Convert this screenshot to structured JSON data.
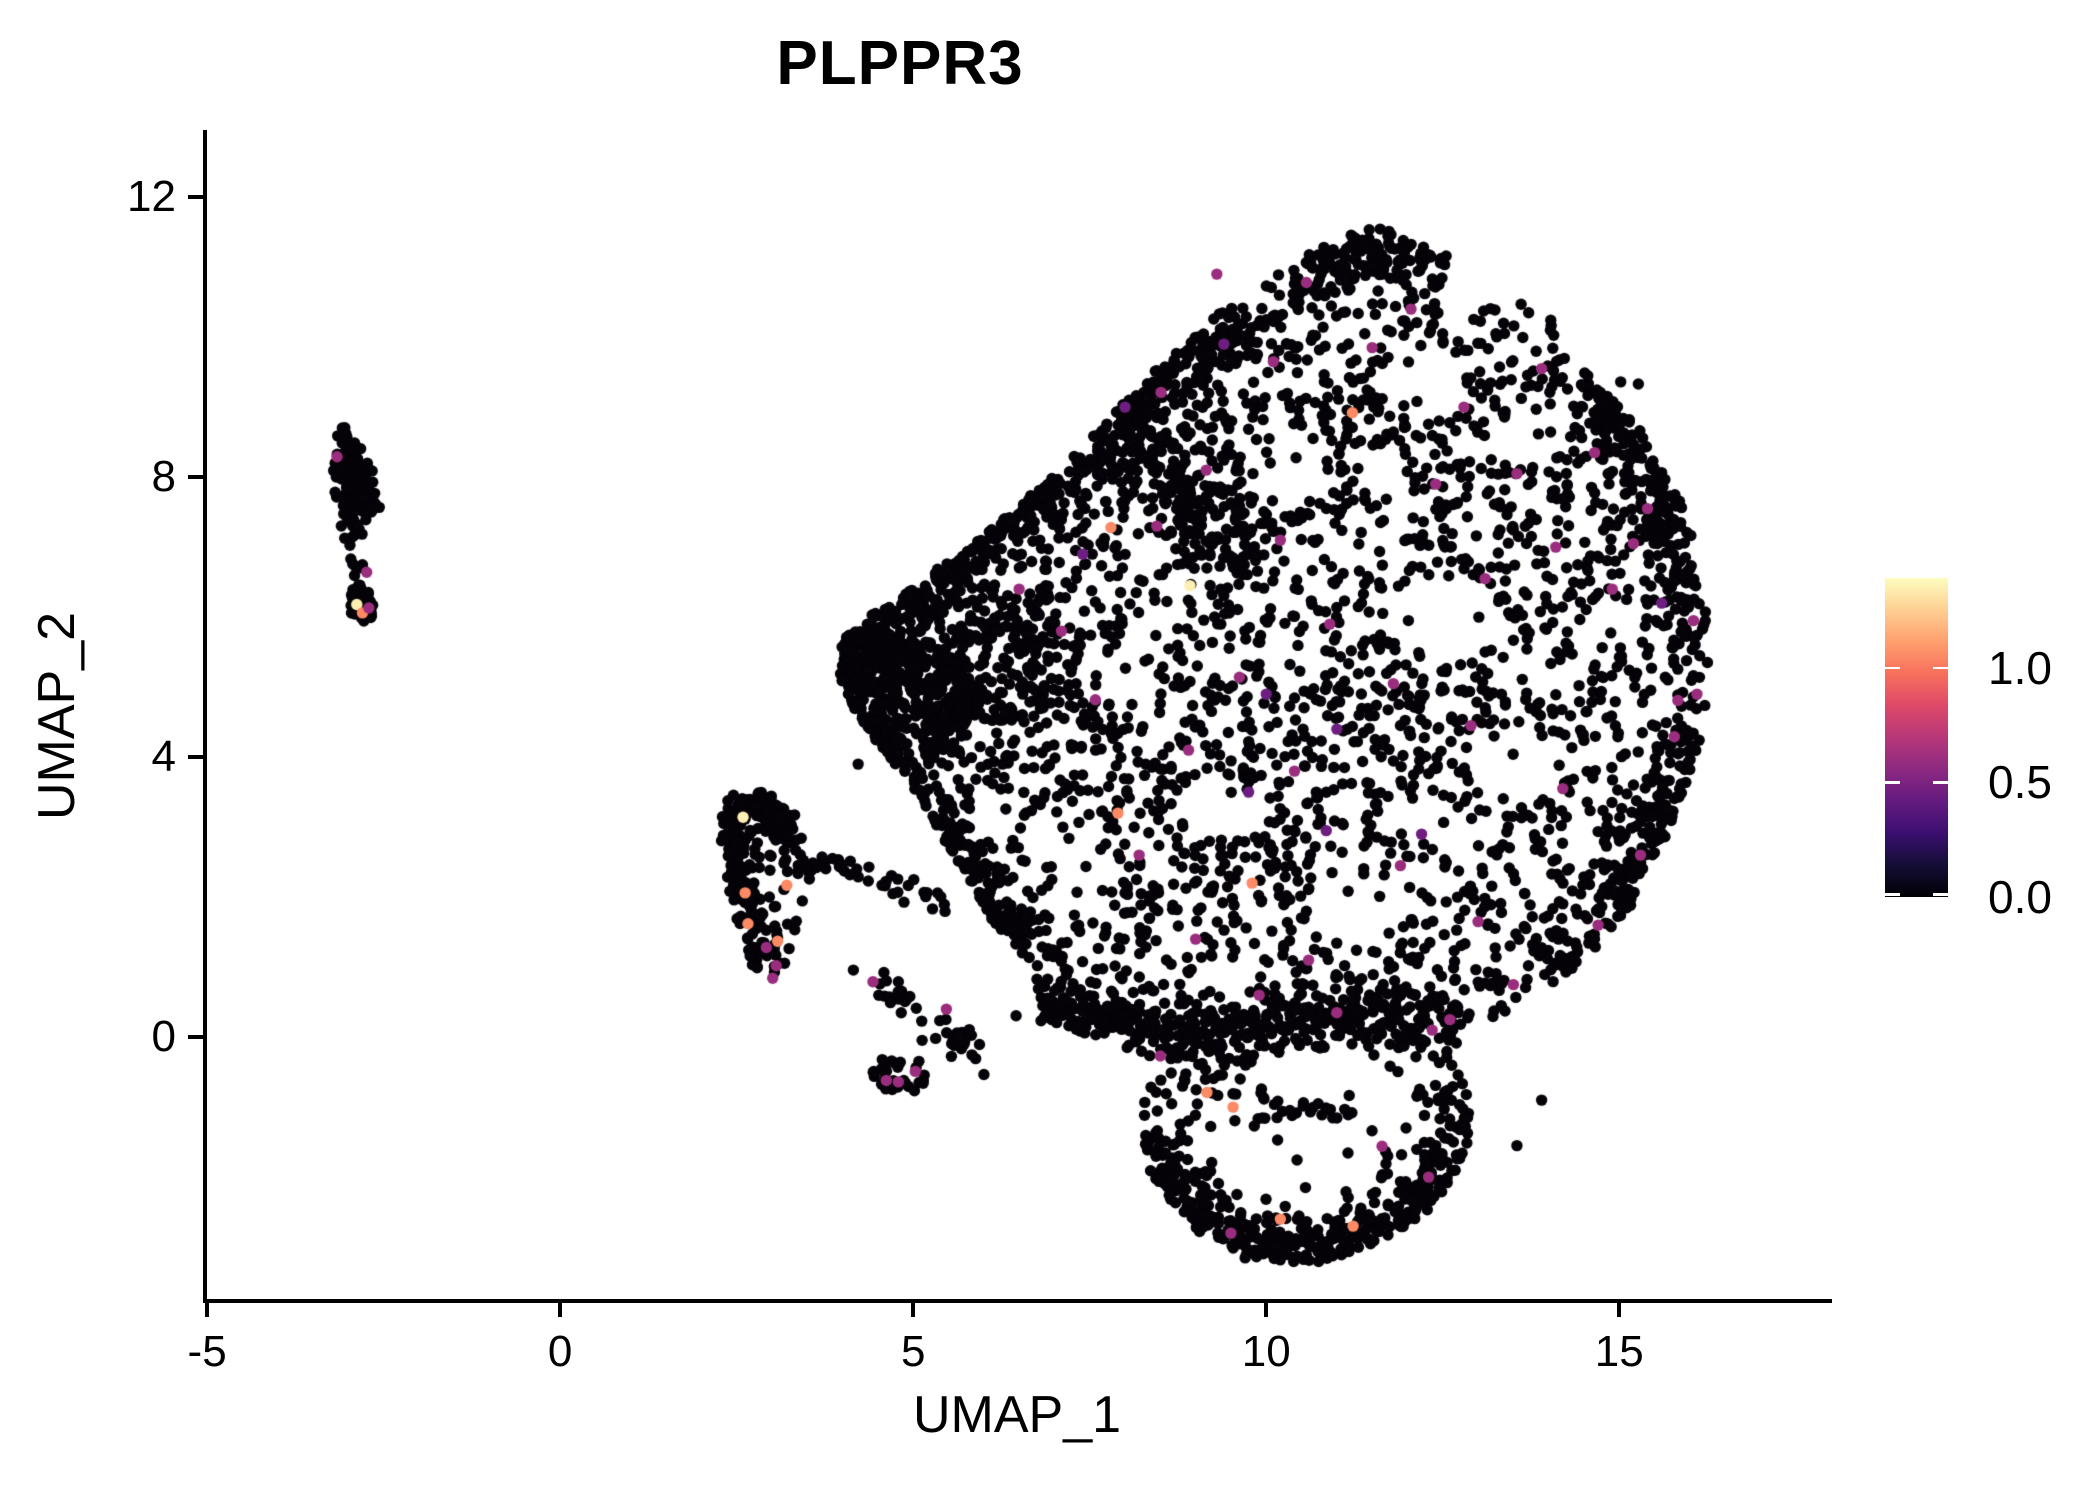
{
  "title": "PLPPR3",
  "axes": {
    "x": {
      "label": "UMAP_1",
      "ticks": [
        -5,
        0,
        5,
        10,
        15
      ],
      "domain": [
        -5.03,
        17.97
      ]
    },
    "y": {
      "label": "UMAP_2",
      "ticks": [
        0,
        4,
        8,
        12
      ],
      "domain": [
        -3.77,
        12.93
      ]
    }
  },
  "legend": {
    "labels": [
      "1.0",
      "0.5",
      "0.0"
    ],
    "values": [
      1.0,
      0.5,
      0.0
    ],
    "vmin": 0,
    "vmax": 1.39,
    "colormap": "magma",
    "stops": [
      [
        0.0,
        "#000004"
      ],
      [
        0.1,
        "#140e36"
      ],
      [
        0.2,
        "#3b0f70"
      ],
      [
        0.3,
        "#641a80"
      ],
      [
        0.4,
        "#8c2981"
      ],
      [
        0.5,
        "#b73779"
      ],
      [
        0.6,
        "#de4968"
      ],
      [
        0.7,
        "#f7705c"
      ],
      [
        0.8,
        "#fe9f6d"
      ],
      [
        0.9,
        "#fecf92"
      ],
      [
        1.0,
        "#fcfdbf"
      ]
    ]
  },
  "colors": {
    "background": "#ffffff",
    "axis": "#000000",
    "zero_point": "#050308"
  },
  "chart_data": {
    "type": "scatter",
    "title": "PLPPR3",
    "xlabel": "UMAP_1",
    "ylabel": "UMAP_2",
    "point_radius_px": 5.7,
    "seed": 7,
    "polygons": [
      {
        "name": "main-blob",
        "count": 2800,
        "verts": [
          [
            11.6,
            11.65
          ],
          [
            12.5,
            11.25
          ],
          [
            13.2,
            10.65
          ],
          [
            14.1,
            10.35
          ],
          [
            14.45,
            9.6
          ],
          [
            15.35,
            8.6
          ],
          [
            15.95,
            7.5
          ],
          [
            16.2,
            6.3
          ],
          [
            16.3,
            5.2
          ],
          [
            16.1,
            4.0
          ],
          [
            15.7,
            2.95
          ],
          [
            15.15,
            1.85
          ],
          [
            14.5,
            1.1
          ],
          [
            13.6,
            0.45
          ],
          [
            12.8,
            0.1
          ],
          [
            12.9,
            -0.5
          ],
          [
            12.85,
            -1.6
          ],
          [
            12.4,
            -2.4
          ],
          [
            11.6,
            -2.95
          ],
          [
            10.6,
            -3.25
          ],
          [
            9.6,
            -3.15
          ],
          [
            8.85,
            -2.65
          ],
          [
            8.35,
            -1.9
          ],
          [
            8.2,
            -1.1
          ],
          [
            8.45,
            -0.5
          ],
          [
            7.85,
            -0.15
          ],
          [
            7.0,
            0.2
          ],
          [
            6.4,
            0.25
          ],
          [
            6.75,
            0.9
          ],
          [
            6.1,
            1.7
          ],
          [
            5.6,
            2.55
          ],
          [
            5.1,
            3.4
          ],
          [
            4.5,
            4.2
          ],
          [
            4.0,
            4.95
          ],
          [
            3.9,
            5.6
          ],
          [
            4.5,
            6.1
          ],
          [
            5.3,
            6.65
          ],
          [
            6.1,
            7.25
          ],
          [
            6.9,
            7.95
          ],
          [
            7.7,
            8.75
          ],
          [
            8.6,
            9.7
          ],
          [
            9.5,
            10.5
          ],
          [
            10.5,
            11.15
          ]
        ],
        "voids": [
          [
            12.2,
            9.35,
            0.6,
            0.45,
            0.9
          ],
          [
            13.7,
            8.5,
            0.5,
            0.4,
            0.85
          ],
          [
            10.4,
            8.05,
            0.45,
            0.35,
            0.8
          ],
          [
            12.5,
            6.0,
            0.85,
            0.55,
            0.9
          ],
          [
            10.4,
            5.4,
            0.5,
            0.45,
            0.85
          ],
          [
            13.6,
            3.9,
            0.7,
            0.5,
            0.9
          ],
          [
            9.35,
            3.3,
            0.6,
            0.45,
            0.85
          ],
          [
            11.3,
            1.85,
            0.75,
            0.5,
            0.85
          ],
          [
            14.9,
            5.9,
            0.4,
            0.35,
            0.8
          ],
          [
            8.1,
            5.1,
            0.4,
            0.3,
            0.7
          ],
          [
            14.4,
            2.7,
            0.35,
            0.3,
            0.8
          ],
          [
            7.4,
            2.4,
            0.4,
            0.35,
            0.7
          ],
          [
            11.1,
            -0.55,
            1.3,
            0.4,
            0.85
          ],
          [
            10.7,
            -1.75,
            1.0,
            0.6,
            0.9
          ],
          [
            9.9,
            10.6,
            0.45,
            0.3,
            0.7
          ],
          [
            11.3,
            7.0,
            0.5,
            0.4,
            0.6
          ],
          [
            13.0,
            7.3,
            0.45,
            0.35,
            0.6
          ],
          [
            12.1,
            3.1,
            0.5,
            0.35,
            0.6
          ],
          [
            10.3,
            6.6,
            0.4,
            0.3,
            0.5
          ],
          [
            8.3,
            1.3,
            0.45,
            0.4,
            0.6
          ],
          [
            13.9,
            5.3,
            0.45,
            0.4,
            0.6
          ],
          [
            15.3,
            4.6,
            0.35,
            0.5,
            0.5
          ],
          [
            9.3,
            -1.5,
            0.5,
            0.4,
            0.7
          ],
          [
            11.9,
            -1.2,
            0.5,
            0.4,
            0.6
          ]
        ]
      },
      {
        "name": "mid-cluster",
        "count": 150,
        "verts": [
          [
            2.3,
            3.4
          ],
          [
            2.85,
            3.5
          ],
          [
            3.25,
            3.05
          ],
          [
            3.55,
            2.7
          ],
          [
            3.62,
            2.25
          ],
          [
            3.4,
            1.75
          ],
          [
            3.25,
            1.25
          ],
          [
            3.1,
            0.8
          ],
          [
            2.75,
            0.95
          ],
          [
            2.55,
            1.45
          ],
          [
            2.35,
            2.1
          ],
          [
            2.25,
            2.8
          ]
        ],
        "voids": [
          [
            3.08,
            2.0,
            0.36,
            0.4,
            0.7
          ]
        ]
      }
    ],
    "paths": [
      {
        "name": "bottom-band",
        "pts": [
          [
            6.9,
            0.5
          ],
          [
            8.2,
            0.15
          ],
          [
            9.6,
            0.1
          ],
          [
            11.2,
            0.3
          ],
          [
            12.7,
            0.25
          ]
        ],
        "sigma": 0.22,
        "count": 330,
        "clip": "main-blob"
      },
      {
        "name": "lobe-rim",
        "pts": [
          [
            8.35,
            -1.3
          ],
          [
            8.8,
            -2.25
          ],
          [
            9.7,
            -2.95
          ],
          [
            10.9,
            -3.1
          ],
          [
            12.0,
            -2.6
          ],
          [
            12.65,
            -1.8
          ],
          [
            12.8,
            -0.9
          ]
        ],
        "sigma": 0.22,
        "count": 300,
        "clip": "main-blob"
      },
      {
        "name": "top-edge",
        "pts": [
          [
            7.1,
            7.95
          ],
          [
            8.5,
            9.3
          ],
          [
            9.8,
            10.35
          ],
          [
            11.2,
            11.2
          ],
          [
            12.3,
            11.05
          ]
        ],
        "sigma": 0.24,
        "count": 260,
        "clip": "main-blob"
      },
      {
        "name": "mid-ridge",
        "pts": [
          [
            7.9,
            8.5
          ],
          [
            8.9,
            7.6
          ],
          [
            9.7,
            6.85
          ]
        ],
        "sigma": 0.28,
        "count": 130,
        "clip": "main-blob"
      },
      {
        "name": "right-rim-top",
        "pts": [
          [
            14.5,
            9.4
          ],
          [
            15.6,
            7.6
          ],
          [
            16.05,
            5.6
          ]
        ],
        "sigma": 0.22,
        "count": 170,
        "clip": "main-blob"
      },
      {
        "name": "right-rim-bottom",
        "pts": [
          [
            16.0,
            4.5
          ],
          [
            15.2,
            2.2
          ],
          [
            14.2,
            0.9
          ]
        ],
        "sigma": 0.22,
        "count": 150,
        "clip": "main-blob"
      },
      {
        "name": "left-edge-up",
        "pts": [
          [
            4.0,
            5.3
          ],
          [
            5.6,
            6.8
          ],
          [
            7.0,
            8.0
          ]
        ],
        "sigma": 0.18,
        "count": 200,
        "clip": "main-blob"
      },
      {
        "name": "left-edge-down",
        "pts": [
          [
            4.3,
            4.5
          ],
          [
            5.7,
            2.6
          ],
          [
            6.6,
            1.35
          ]
        ],
        "sigma": 0.18,
        "count": 180,
        "clip": "main-blob"
      },
      {
        "name": "mid-top-rim",
        "pts": [
          [
            2.4,
            3.3
          ],
          [
            2.9,
            3.35
          ],
          [
            3.25,
            3.0
          ]
        ],
        "sigma": 0.1,
        "count": 55
      },
      {
        "name": "mid-left-rim",
        "pts": [
          [
            2.45,
            3.05
          ],
          [
            2.6,
            2.2
          ],
          [
            2.78,
            1.2
          ]
        ],
        "sigma": 0.1,
        "count": 80
      },
      {
        "name": "arm",
        "pts": [
          [
            3.65,
            2.5
          ],
          [
            4.4,
            2.32
          ],
          [
            5.0,
            2.15
          ],
          [
            5.45,
            1.95
          ]
        ],
        "sigma": 0.1,
        "count": 38
      },
      {
        "name": "chain",
        "pts": [
          [
            4.3,
            0.95
          ],
          [
            4.85,
            0.5
          ],
          [
            5.4,
            0.12
          ],
          [
            5.9,
            -0.3
          ]
        ],
        "sigma": 0.11,
        "count": 40
      },
      {
        "name": "left-strip-a",
        "pts": [
          [
            -3.06,
            8.6
          ],
          [
            -3.0,
            7.9
          ],
          [
            -2.92,
            7.15
          ]
        ],
        "sigma": 0.08,
        "count": 95
      },
      {
        "name": "left-strip-b",
        "pts": [
          [
            -2.76,
            8.15
          ],
          [
            -2.7,
            7.5
          ]
        ],
        "sigma": 0.065,
        "count": 38
      },
      {
        "name": "left-strip-connector",
        "pts": [
          [
            -2.9,
            6.95
          ],
          [
            -2.84,
            6.6
          ]
        ],
        "sigma": 0.05,
        "count": 7
      }
    ],
    "ellipses": [
      {
        "name": "left-tip-dense",
        "cx": 4.95,
        "cy": 4.85,
        "rx": 1.05,
        "ry": 0.85,
        "count": 260,
        "clip": "main-blob"
      },
      {
        "name": "left-tip-core",
        "cx": 4.45,
        "cy": 5.35,
        "rx": 0.6,
        "ry": 0.5,
        "count": 120,
        "clip": "main-blob"
      },
      {
        "name": "center-left-dense",
        "cx": 6.2,
        "cy": 5.5,
        "rx": 1.25,
        "ry": 1.0,
        "count": 180,
        "clip": "main-blob"
      },
      {
        "name": "left-strip-bottom",
        "cx": -2.8,
        "cy": 6.22,
        "rx": 0.2,
        "ry": 0.32,
        "count": 40
      },
      {
        "name": "mid-bottom-blob",
        "cx": 4.85,
        "cy": -0.52,
        "rx": 0.42,
        "ry": 0.3,
        "count": 32
      }
    ],
    "strays": [
      [
        4.22,
        3.9
      ],
      [
        15.02,
        9.36
      ],
      [
        15.27,
        9.33
      ],
      [
        13.9,
        -0.9
      ],
      [
        13.55,
        -1.55
      ]
    ],
    "expressing_cells": [
      [
        -3.16,
        8.29,
        0.6
      ],
      [
        -2.74,
        6.64,
        0.6
      ],
      [
        -2.88,
        6.18,
        1.35
      ],
      [
        -2.8,
        6.06,
        1.05
      ],
      [
        -2.71,
        6.13,
        0.6
      ],
      [
        2.59,
        3.14,
        1.35
      ],
      [
        2.62,
        2.06,
        1.05
      ],
      [
        3.21,
        2.17,
        1.05
      ],
      [
        2.66,
        1.62,
        1.05
      ],
      [
        3.08,
        1.37,
        1.05
      ],
      [
        2.92,
        1.28,
        0.6
      ],
      [
        3.06,
        1.02,
        0.6
      ],
      [
        3.01,
        0.84,
        0.6
      ],
      [
        4.43,
        0.79,
        0.6
      ],
      [
        5.47,
        0.4,
        0.6
      ],
      [
        4.62,
        -0.62,
        0.6
      ],
      [
        4.79,
        -0.64,
        0.6
      ],
      [
        5.03,
        -0.49,
        0.6
      ],
      [
        8.92,
        6.45,
        1.35
      ],
      [
        7.8,
        7.28,
        1.05
      ],
      [
        8.51,
        9.21,
        0.6
      ],
      [
        7.58,
        4.82,
        0.6
      ],
      [
        11.22,
        8.92,
        1.05
      ],
      [
        10.57,
        10.78,
        0.6
      ],
      [
        15.4,
        7.55,
        0.6
      ],
      [
        15.2,
        7.05,
        0.6
      ],
      [
        15.83,
        4.81,
        0.6
      ],
      [
        15.78,
        4.29,
        0.6
      ],
      [
        9.16,
        -0.79,
        1.05
      ],
      [
        11.23,
        -2.7,
        1.05
      ],
      [
        9.5,
        -2.8,
        0.6
      ],
      [
        11.64,
        -1.56,
        0.6
      ],
      [
        12.6,
        0.25,
        0.6
      ],
      [
        12.35,
        0.1,
        0.6
      ],
      [
        9.53,
        -1.0,
        1.05
      ],
      [
        8.5,
        -0.27,
        0.6
      ],
      [
        10.1,
        9.65,
        0.6
      ],
      [
        9.15,
        8.1,
        0.6
      ],
      [
        10.9,
        5.9,
        0.6
      ],
      [
        11.8,
        5.05,
        0.6
      ],
      [
        13.1,
        6.55,
        0.6
      ],
      [
        12.4,
        7.9,
        0.6
      ],
      [
        14.1,
        7.0,
        0.6
      ],
      [
        9.8,
        2.2,
        1.05
      ],
      [
        10.6,
        1.1,
        0.6
      ],
      [
        9.9,
        0.6,
        0.6
      ],
      [
        11.9,
        2.45,
        0.6
      ],
      [
        13.0,
        1.65,
        0.6
      ],
      [
        8.9,
        4.1,
        0.6
      ],
      [
        7.9,
        3.2,
        1.05
      ],
      [
        12.9,
        4.45,
        0.6
      ],
      [
        14.2,
        3.55,
        0.6
      ],
      [
        10.4,
        3.8,
        0.6
      ],
      [
        11.5,
        9.85,
        0.6
      ],
      [
        12.8,
        9.0,
        0.6
      ],
      [
        13.9,
        9.55,
        0.6
      ],
      [
        10.2,
        7.1,
        0.6
      ],
      [
        16.05,
        5.95,
        0.6
      ],
      [
        15.3,
        2.6,
        0.6
      ],
      [
        14.7,
        1.6,
        0.6
      ],
      [
        13.5,
        0.75,
        0.6
      ],
      [
        9.0,
        1.4,
        0.6
      ],
      [
        8.2,
        2.6,
        0.6
      ],
      [
        7.1,
        5.8,
        0.6
      ],
      [
        6.5,
        6.4,
        0.6
      ],
      [
        7.4,
        6.9,
        0.45
      ],
      [
        8.0,
        9.0,
        0.45
      ],
      [
        9.4,
        9.9,
        0.45
      ],
      [
        11.0,
        4.4,
        0.45
      ],
      [
        12.2,
        2.9,
        0.45
      ],
      [
        10.0,
        4.9,
        0.45
      ],
      [
        9.62,
        5.14,
        0.6
      ],
      [
        10.85,
        2.95,
        0.45
      ],
      [
        13.55,
        8.05,
        0.6
      ],
      [
        14.65,
        8.35,
        0.6
      ],
      [
        12.05,
        10.4,
        0.6
      ],
      [
        9.3,
        10.9,
        0.6
      ],
      [
        8.45,
        7.3,
        0.6
      ],
      [
        12.3,
        -2.0,
        0.6
      ],
      [
        10.2,
        -2.6,
        1.05
      ],
      [
        11.0,
        0.35,
        0.6
      ],
      [
        9.75,
        3.5,
        0.45
      ],
      [
        14.9,
        6.4,
        0.6
      ],
      [
        15.6,
        6.2,
        0.45
      ],
      [
        16.1,
        4.9,
        0.6
      ]
    ]
  }
}
